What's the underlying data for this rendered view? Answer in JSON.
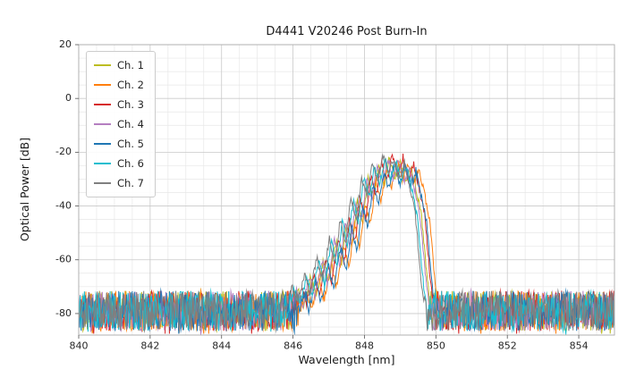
{
  "chart_data": {
    "type": "line",
    "title": "D4441 V20246 Post Burn-In",
    "xlabel": "Wavelength [nm]",
    "ylabel": "Optical Power [dB]",
    "xlim": [
      840,
      855
    ],
    "ylim": [
      -88,
      20
    ],
    "xticks": [
      840,
      842,
      844,
      846,
      848,
      850,
      852,
      854
    ],
    "yticks": [
      20,
      0,
      -20,
      -40,
      -60,
      -80
    ],
    "grid": true,
    "minor_grid": true,
    "legend_position": "upper left",
    "series": [
      {
        "name": "Ch. 1",
        "color": "#bcbd22",
        "x_offset": 0.0,
        "y_offset": 0
      },
      {
        "name": "Ch. 2",
        "color": "#ff7f0e",
        "x_offset": 0.22,
        "y_offset": -1
      },
      {
        "name": "Ch. 3",
        "color": "#d62728",
        "x_offset": 0.08,
        "y_offset": 1
      },
      {
        "name": "Ch. 4",
        "color": "#b57fc1",
        "x_offset": -0.04,
        "y_offset": 0
      },
      {
        "name": "Ch. 5",
        "color": "#1f77b4",
        "x_offset": 0.14,
        "y_offset": -2
      },
      {
        "name": "Ch. 6",
        "color": "#17becf",
        "x_offset": -0.12,
        "y_offset": 0
      },
      {
        "name": "Ch. 7",
        "color": "#7f7f7f",
        "x_offset": -0.18,
        "y_offset": 1
      }
    ],
    "envelope_keypoints": [
      [
        845.9,
        -85
      ],
      [
        846.15,
        -71
      ],
      [
        846.3,
        -78
      ],
      [
        846.5,
        -66
      ],
      [
        846.65,
        -74
      ],
      [
        846.85,
        -60
      ],
      [
        847.0,
        -69
      ],
      [
        847.2,
        -53
      ],
      [
        847.35,
        -62
      ],
      [
        847.5,
        -46
      ],
      [
        847.65,
        -55
      ],
      [
        847.8,
        -38
      ],
      [
        847.95,
        -46
      ],
      [
        848.1,
        -30
      ],
      [
        848.25,
        -37
      ],
      [
        848.4,
        -25
      ],
      [
        848.55,
        -32
      ],
      [
        848.7,
        -22
      ],
      [
        848.85,
        -30
      ],
      [
        849.0,
        -23
      ],
      [
        849.15,
        -31
      ],
      [
        849.3,
        -25
      ],
      [
        849.45,
        -34
      ],
      [
        849.6,
        -44
      ],
      [
        849.75,
        -66
      ],
      [
        849.9,
        -85
      ]
    ],
    "noise": {
      "floor_center": -79,
      "floor_halfspan": 7.5,
      "signal_jitter": 1.5,
      "step_nm": 0.02,
      "seed": 42
    },
    "peak_power_db": -22,
    "noise_floor_db": -79,
    "colors": {
      "grid_major": "#c9c9c9",
      "grid_minor": "#e7e7e7",
      "frame": "#b0b0b0",
      "tick_label": "#262626"
    }
  }
}
